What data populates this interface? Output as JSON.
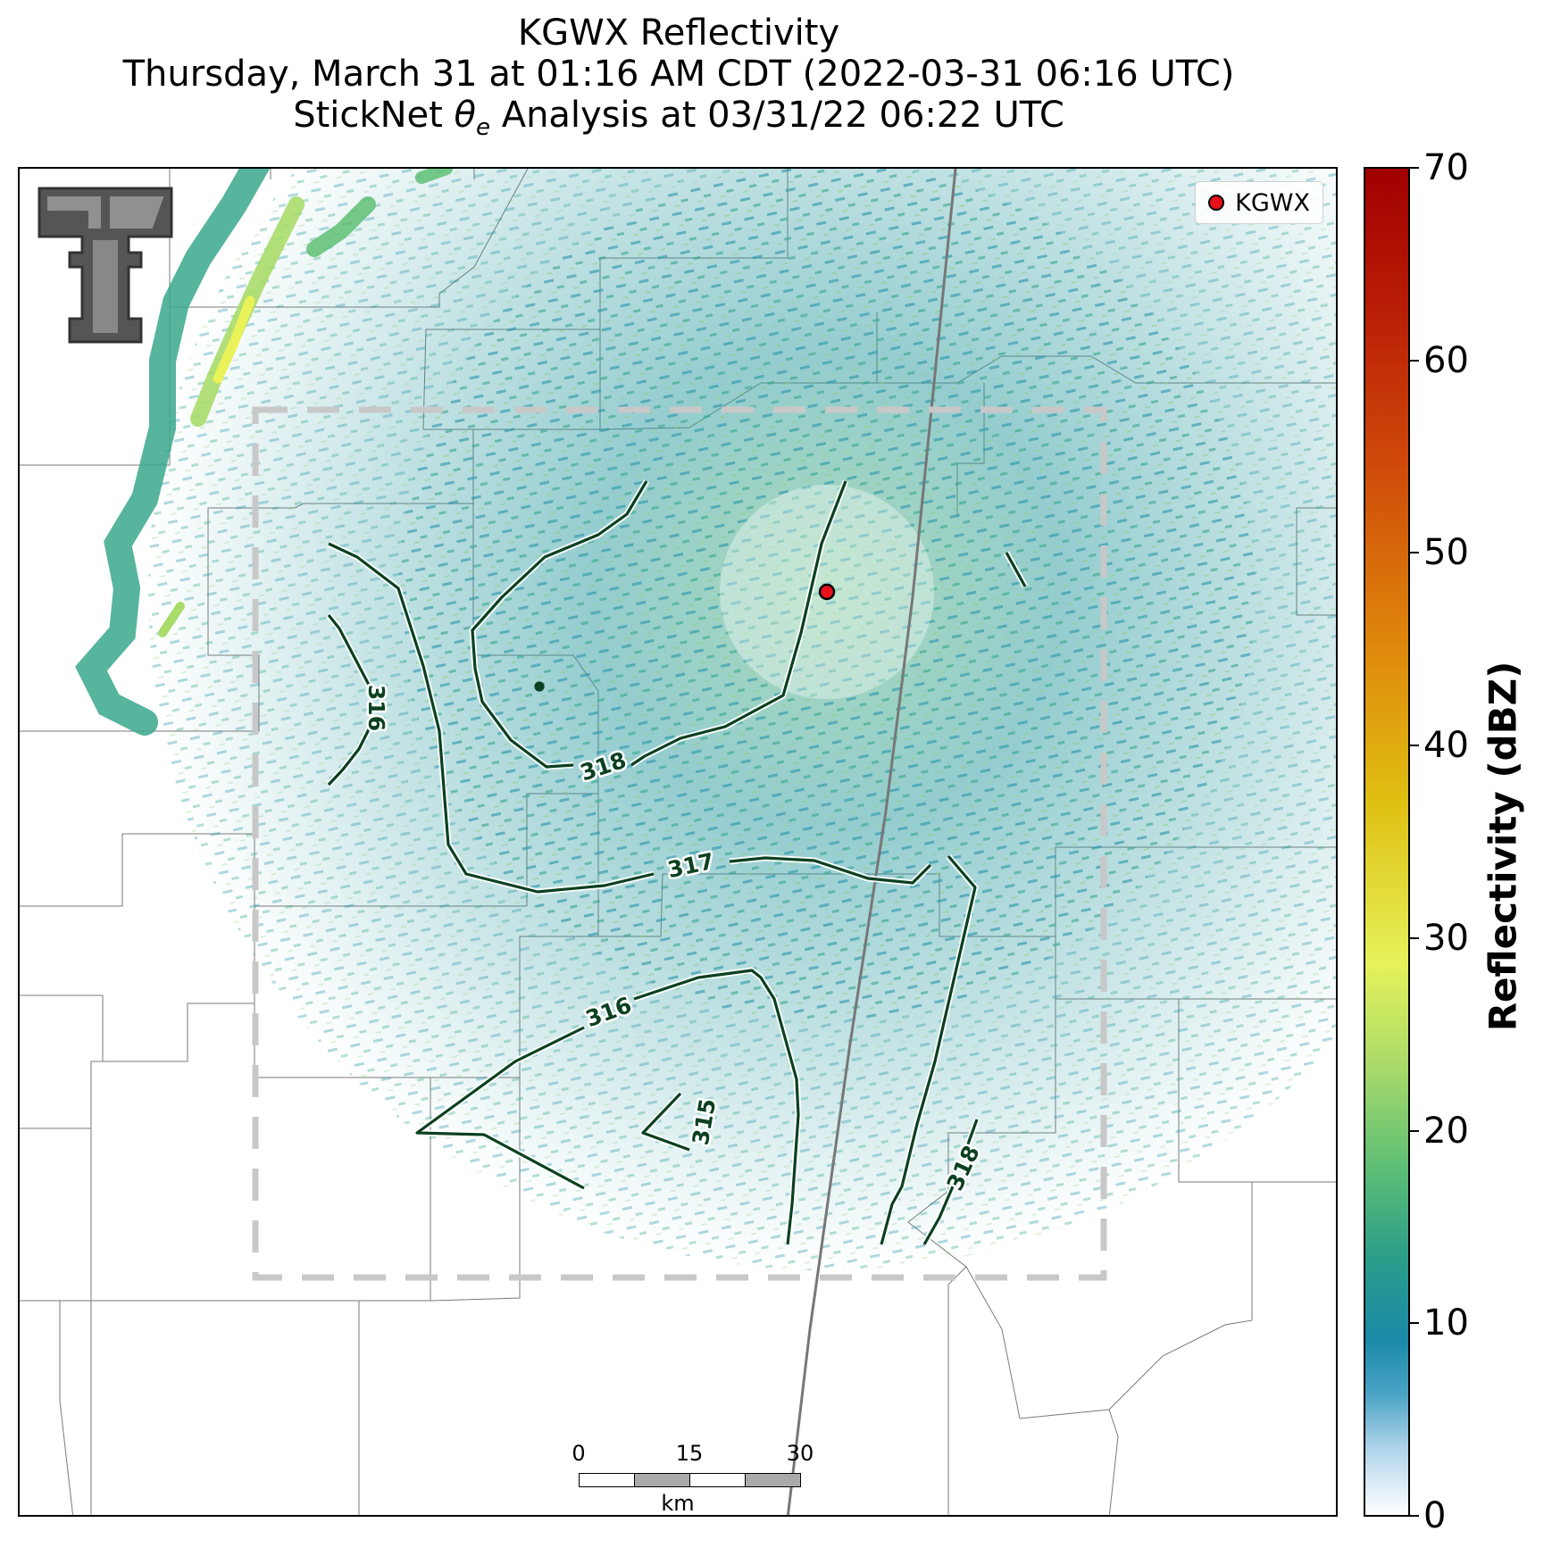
{
  "title": {
    "line1": "KGWX Reflectivity",
    "line2": "Thursday, March 31 at 01:16 AM CDT (2022-03-31 06:16 UTC)",
    "line3_prefix": "StickNet ",
    "line3_theta": "θ",
    "line3_sub": "e",
    "line3_suffix": " Analysis at 03/31/22 06:22 UTC"
  },
  "legend": {
    "label": "KGWX",
    "marker_color": "#e8101a"
  },
  "contours": [
    {
      "label": "316"
    },
    {
      "label": "318"
    },
    {
      "label": "317"
    },
    {
      "label": "316"
    },
    {
      "label": "315"
    },
    {
      "label": "318"
    }
  ],
  "contour_color": "#0b4020",
  "scalebar": {
    "ticks": [
      "0",
      "15",
      "30"
    ],
    "unit": "km"
  },
  "colorbar": {
    "title": "Reflectivity (dBZ)",
    "min": 0,
    "max": 70,
    "ticks": [
      "0",
      "10",
      "20",
      "30",
      "40",
      "50",
      "60",
      "70"
    ]
  },
  "radar_site": "KGWX"
}
